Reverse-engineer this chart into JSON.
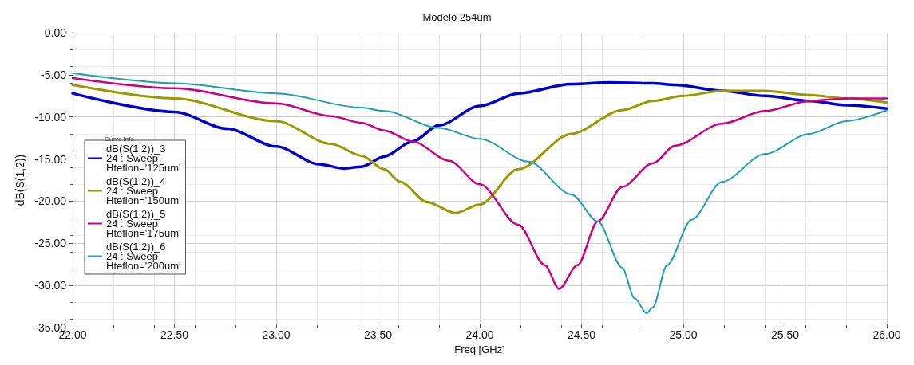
{
  "chart_data": {
    "type": "line",
    "title": "Modelo 254um",
    "xlabel": "Freq [GHz]",
    "ylabel": "dB(S(1,2))",
    "legend_title": "Curve Info",
    "legend": "left",
    "grid": true,
    "marker": "none",
    "line_style": "solid",
    "xlim": [
      22,
      26
    ],
    "ylim": [
      -35,
      0
    ],
    "xticks": [
      {
        "value": 22,
        "label": "22.00"
      },
      {
        "value": 22.5,
        "label": "22.50"
      },
      {
        "value": 23,
        "label": "23.00"
      },
      {
        "value": 23.5,
        "label": "23.50"
      },
      {
        "value": 24,
        "label": "24.00"
      },
      {
        "value": 24.5,
        "label": "24.50"
      },
      {
        "value": 25,
        "label": "25.00"
      },
      {
        "value": 25.5,
        "label": "25.50"
      },
      {
        "value": 26,
        "label": "26.00"
      }
    ],
    "yticks": [
      {
        "value": -35,
        "label": "-35.00"
      },
      {
        "value": -30,
        "label": "-30.00"
      },
      {
        "value": -25,
        "label": "-25.00"
      },
      {
        "value": -20,
        "label": "-20.00"
      },
      {
        "value": -15,
        "label": "-15.00"
      },
      {
        "value": -10,
        "label": "-10.00"
      },
      {
        "value": -5,
        "label": "-5.00"
      },
      {
        "value": 0,
        "label": "0.00"
      }
    ],
    "series": [
      {
        "name": "dB(S(1,2))_3\n24 : Sweep\nHteflon='125um'",
        "color": "#0000cc",
        "x": [
          22,
          22.5,
          22.76,
          23,
          23.21,
          23.33,
          23.42,
          23.53,
          23.67,
          23.8,
          24,
          24.19,
          24.45,
          24.64,
          24.85,
          24.96,
          25.19,
          25.4,
          25.62,
          25.8,
          26
        ],
        "values": [
          -7.2,
          -9.4,
          -11.4,
          -13.5,
          -15.6,
          -16.1,
          -15.9,
          -14.7,
          -12.9,
          -11,
          -8.7,
          -7.2,
          -6.1,
          -5.9,
          -6,
          -6.2,
          -6.9,
          -7.5,
          -8.1,
          -8.6,
          -9
        ]
      },
      {
        "name": "dB(S(1,2))_4\n24 : Sweep\nHteflon='150um'",
        "color": "#999900",
        "x": [
          22,
          22.5,
          23,
          23.27,
          23.42,
          23.53,
          23.61,
          23.74,
          23.88,
          24,
          24.19,
          24.45,
          24.7,
          24.85,
          25,
          25.19,
          25.4,
          25.62,
          25.8,
          26
        ],
        "values": [
          -6.2,
          -7.8,
          -10.5,
          -13.2,
          -14.6,
          -16.2,
          -17.7,
          -20.1,
          -21.4,
          -20.4,
          -16.2,
          -12,
          -9.2,
          -8.1,
          -7.5,
          -6.9,
          -6.9,
          -7.4,
          -7.8,
          -8.3
        ]
      },
      {
        "name": "dB(S(1,2))_5\n24 : Sweep\nHteflon='175um'",
        "color": "#cc0080",
        "x": [
          22,
          22.5,
          23,
          23.27,
          23.42,
          23.53,
          23.67,
          23.85,
          24,
          24.19,
          24.32,
          24.39,
          24.48,
          24.58,
          24.7,
          24.85,
          24.96,
          25.19,
          25.4,
          25.62,
          25.8,
          26
        ],
        "values": [
          -5.4,
          -6.6,
          -8.4,
          -9.9,
          -10.7,
          -11.6,
          -12.9,
          -15.2,
          -18,
          -22.8,
          -27.6,
          -30.4,
          -27.6,
          -22.4,
          -18.3,
          -15.5,
          -13.4,
          -10.8,
          -9.3,
          -8.1,
          -7.8,
          -7.8
        ]
      },
      {
        "name": "dB(S(1,2))_6\n24 : Sweep\nHteflon='200um'",
        "color": "#20a0b0",
        "x": [
          22,
          22.5,
          23,
          23.42,
          23.53,
          23.8,
          24,
          24.24,
          24.45,
          24.58,
          24.7,
          24.76,
          24.82,
          24.85,
          24.92,
          25.04,
          25.19,
          25.4,
          25.62,
          25.8,
          26
        ],
        "values": [
          -4.8,
          -6,
          -7.2,
          -8.9,
          -9.3,
          -11.3,
          -12.6,
          -15.3,
          -19.2,
          -22.4,
          -27.9,
          -31.5,
          -33.3,
          -32.6,
          -27.6,
          -22.2,
          -17.7,
          -14.4,
          -12,
          -10.5,
          -9.2
        ]
      }
    ]
  }
}
